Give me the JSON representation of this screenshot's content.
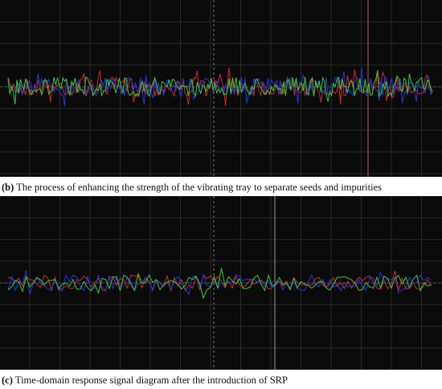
{
  "panels": [
    {
      "label": "(b)",
      "caption": "The process of enhancing the strength of the vibrating tray to separate seeds and impurities"
    },
    {
      "label": "(c)",
      "caption": "Time-domain response signal diagram after the introduction of SRP"
    }
  ]
}
